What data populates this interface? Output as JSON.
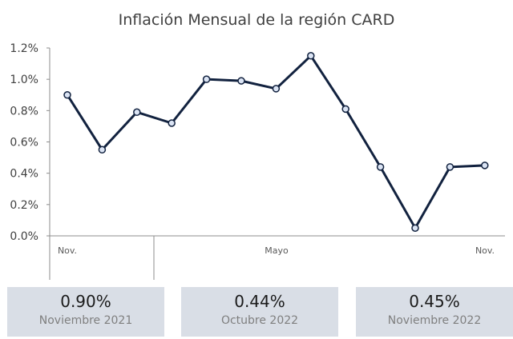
{
  "chart_data": {
    "type": "line",
    "title": "Inflación Mensual de la región CARD",
    "y_tick_labels": [
      "1.2%",
      "1.0%",
      "0.8%",
      "0.6%",
      "0.4%",
      "0.2%",
      "0.0%"
    ],
    "x_tick_labels": [
      "Nov.",
      "Mayo",
      "Nov."
    ],
    "ylim": [
      0,
      1.2
    ],
    "grid": false,
    "series": [
      {
        "x": [
          "2021-11",
          "2021-12",
          "2022-01",
          "2022-02",
          "2022-03",
          "2022-04",
          "2022-05",
          "2022-06",
          "2022-07",
          "2022-08",
          "2022-09",
          "2022-10",
          "2022-11"
        ],
        "values": [
          0.9,
          0.55,
          0.79,
          0.72,
          1.0,
          0.99,
          0.94,
          1.15,
          0.81,
          0.44,
          0.05,
          0.44,
          0.45
        ],
        "color": "#12223f"
      }
    ]
  },
  "summary": [
    {
      "value": "0.90%",
      "label": "Noviembre 2021"
    },
    {
      "value": "0.44%",
      "label": "Octubre 2022"
    },
    {
      "value": "0.45%",
      "label": "Noviembre 2022"
    }
  ]
}
